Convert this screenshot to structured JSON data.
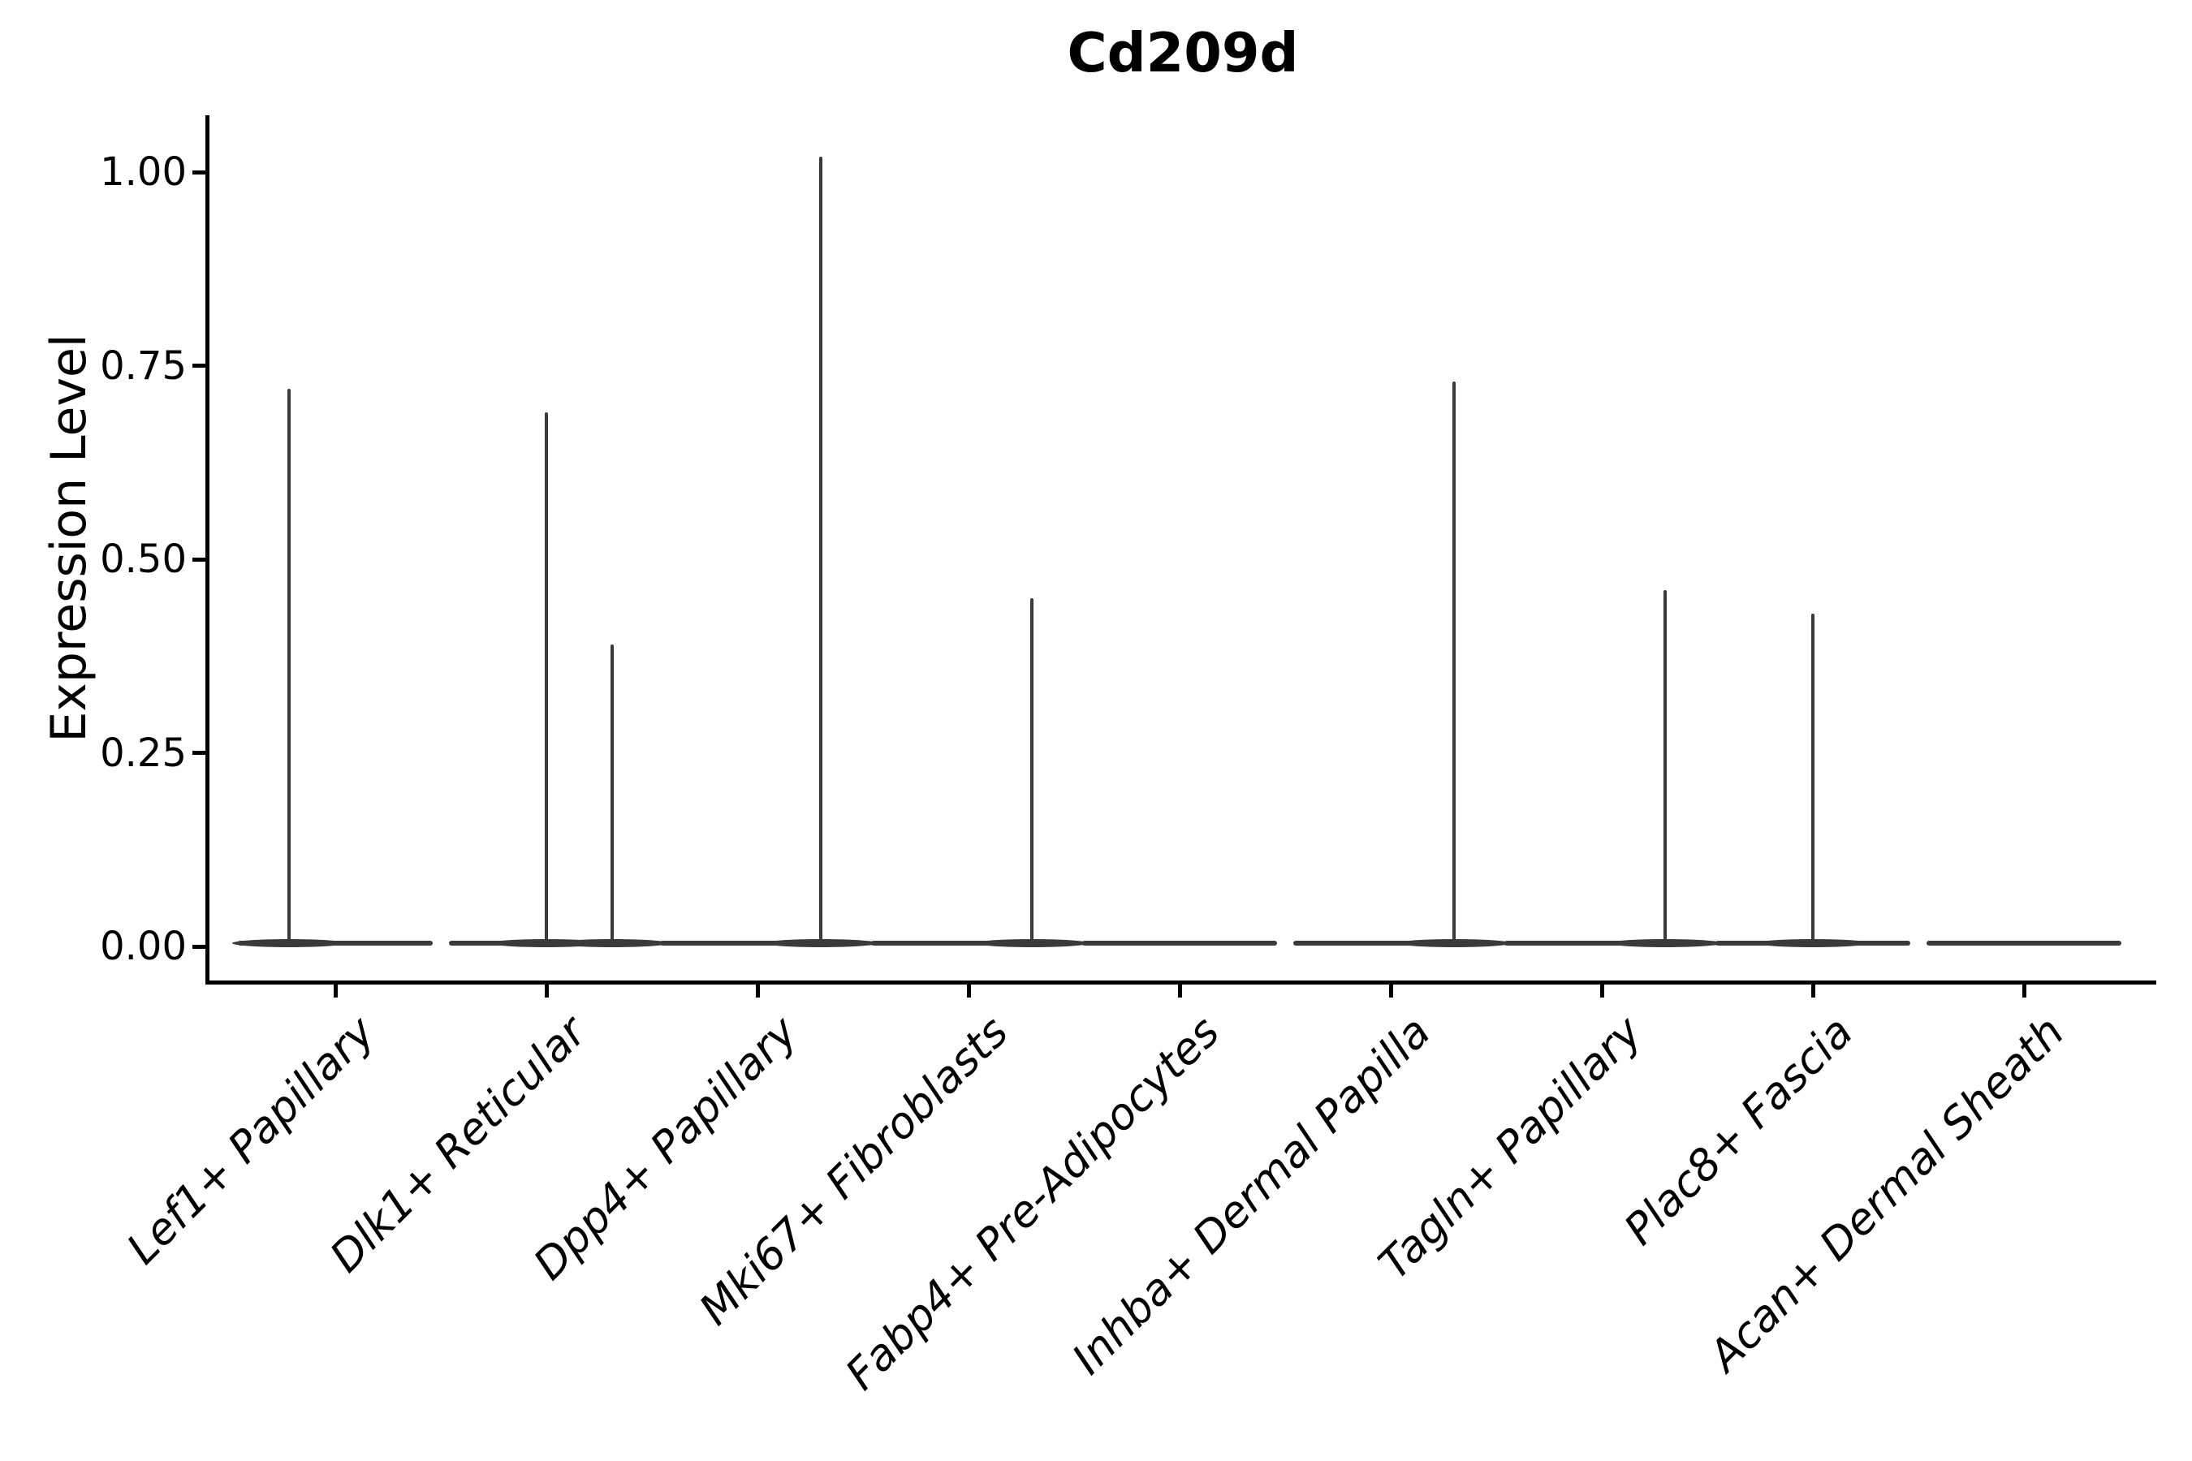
{
  "chart_data": {
    "type": "violin",
    "title": "Cd209d",
    "ylabel": "Expression Level",
    "xlabel": "",
    "grid": false,
    "legend": false,
    "background_color": "#ffffff",
    "axis_color": "#000000",
    "violin_color": "#3a3a3a",
    "ylim": [
      0,
      1.07
    ],
    "yticks": [
      {
        "label": "1.00",
        "value": 1.0
      },
      {
        "label": "0.75",
        "value": 0.75
      },
      {
        "label": "0.50",
        "value": 0.5
      },
      {
        "label": "0.25",
        "value": 0.25
      },
      {
        "label": "0.00",
        "value": 0.0
      }
    ],
    "categories": [
      {
        "label": "Lef1+ Papillary",
        "spikes": [
          {
            "dx": -0.22,
            "value": 0.72
          }
        ]
      },
      {
        "label": "Dlk1+ Reticular",
        "spikes": [
          {
            "dx": 0.0,
            "value": 0.69
          },
          {
            "dx": 0.31,
            "value": 0.39
          }
        ]
      },
      {
        "label": "Dpp4+ Papillary",
        "spikes": [
          {
            "dx": 0.3,
            "value": 1.02
          }
        ]
      },
      {
        "label": "Mki67+ Fibroblasts",
        "spikes": [
          {
            "dx": 0.3,
            "value": 0.45
          }
        ]
      },
      {
        "label": "Fabp4+ Pre-Adipocytes",
        "spikes": []
      },
      {
        "label": "Inhba+ Dermal Papilla",
        "spikes": [
          {
            "dx": 0.3,
            "value": 0.73
          }
        ]
      },
      {
        "label": "Tagln+ Papillary",
        "spikes": [
          {
            "dx": 0.3,
            "value": 0.46
          }
        ]
      },
      {
        "label": "Plac8+ Fascia",
        "spikes": [
          {
            "dx": 0.0,
            "value": 0.43
          }
        ]
      },
      {
        "label": "Acan+ Dermal Sheath",
        "spikes": []
      }
    ]
  }
}
